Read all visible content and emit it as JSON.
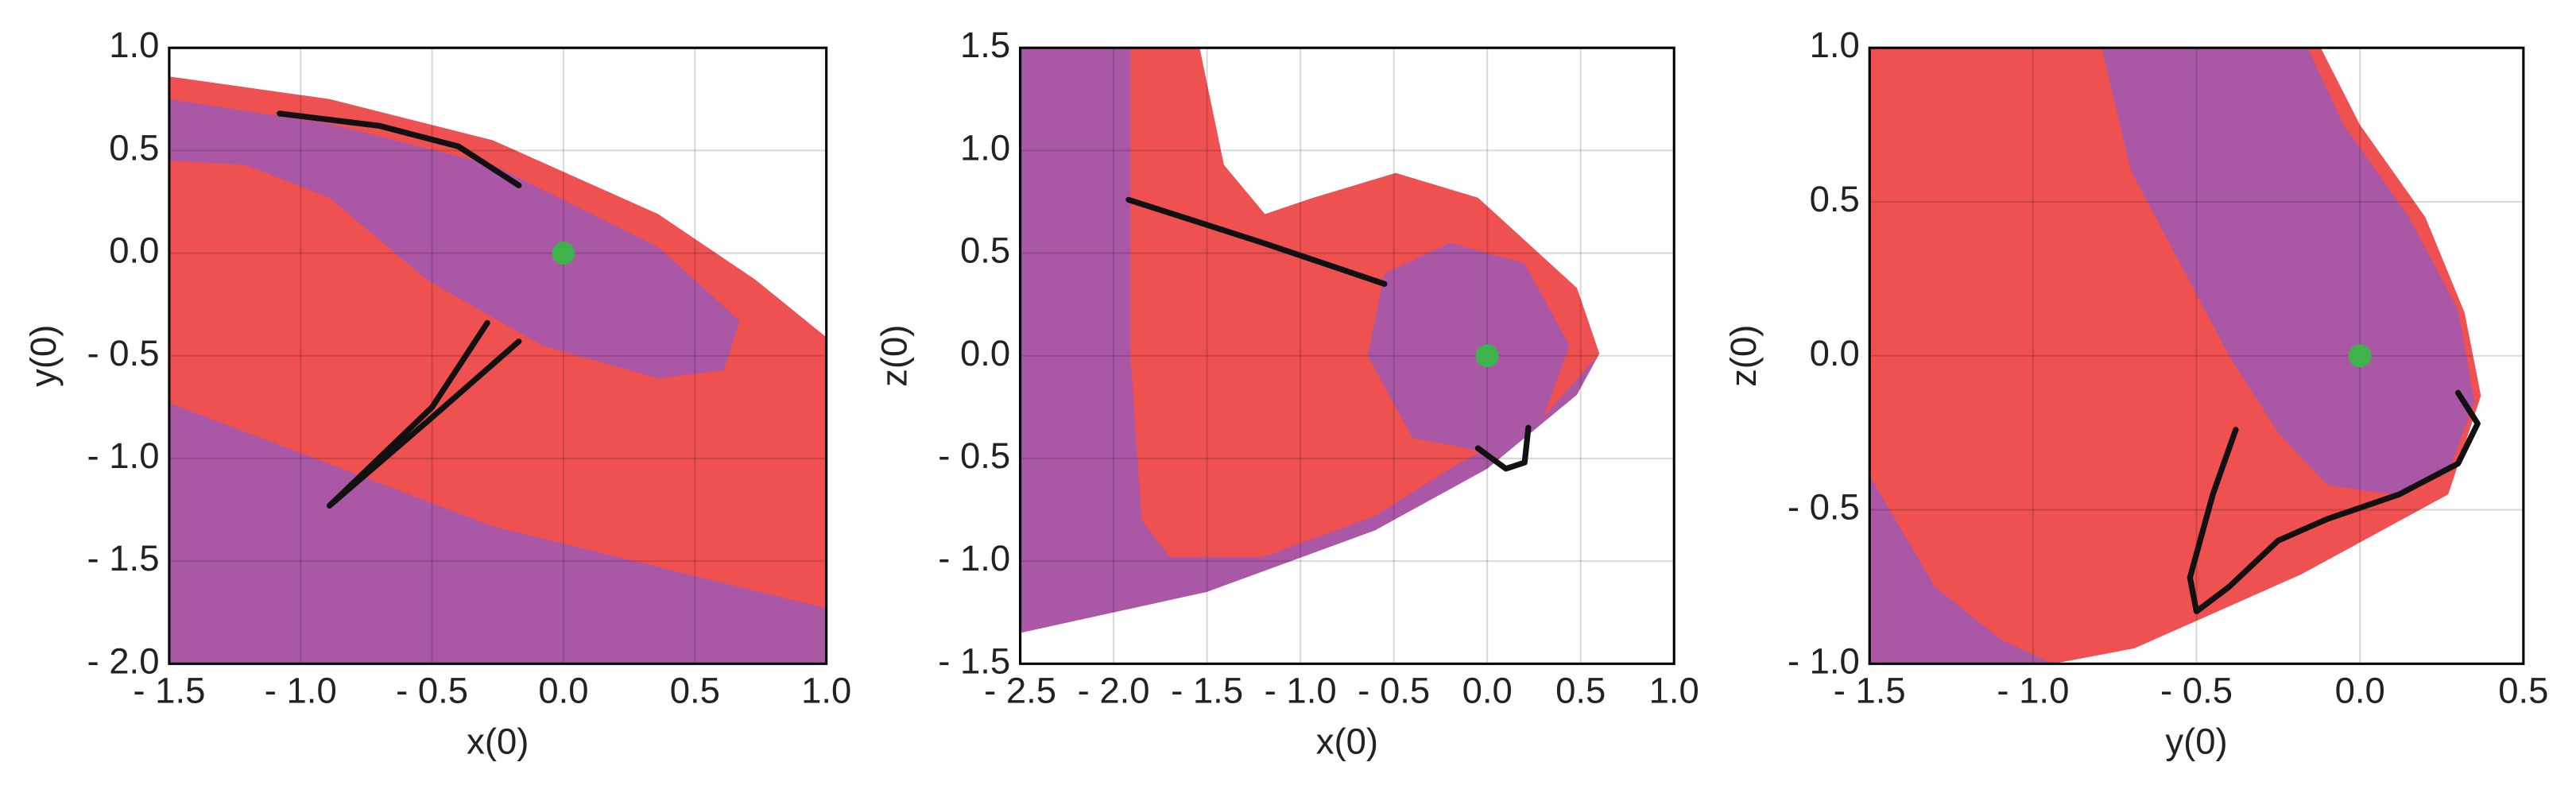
{
  "chart_data": [
    {
      "type": "scatter",
      "xlabel": "x(0)",
      "ylabel": "y(0)",
      "grid": true,
      "xlim": [
        -1.5,
        1
      ],
      "ylim": [
        -2,
        1
      ],
      "xticks": [
        {
          "value": -1.5,
          "label": "- 1.5"
        },
        {
          "value": -1,
          "label": "- 1.0"
        },
        {
          "value": -0.5,
          "label": "- 0.5"
        },
        {
          "value": 0,
          "label": "0.0"
        },
        0.5,
        {
          "value": 1,
          "label": "1.0"
        }
      ],
      "yticks": [
        {
          "value": -2,
          "label": "- 2.0"
        },
        {
          "value": -1.5,
          "label": "- 1.5"
        },
        {
          "value": -1,
          "label": "- 1.0"
        },
        {
          "value": -0.5,
          "label": "- 0.5"
        },
        {
          "value": 0,
          "label": "0.0"
        },
        0.5,
        {
          "value": 1,
          "label": "1.0"
        }
      ],
      "series": [
        {
          "kind": "area",
          "color": "#aa57a6",
          "x": [
            -1.5,
            -0.89,
            -0.27,
            0.36,
            0.73,
            1,
            1,
            -1.5
          ],
          "y": [
            0.86,
            0.75,
            0.55,
            0.19,
            -0.13,
            -0.41,
            -2,
            -2
          ]
        },
        {
          "kind": "area",
          "color": "#ef5050",
          "x": [
            -1.5,
            -0.89,
            -0.27,
            0.36,
            0.73,
            1,
            1,
            -0.27,
            -1.5
          ],
          "y": [
            0.86,
            0.75,
            0.55,
            0.19,
            -0.13,
            -0.41,
            -1.73,
            -1.33,
            -0.73
          ]
        },
        {
          "kind": "area",
          "color": "#aa57a6",
          "x": [
            -1.5,
            -0.89,
            -0.27,
            0.36,
            0.67,
            0.61,
            0.36,
            -0.08,
            -0.52,
            -0.89,
            -1.21,
            -1.5
          ],
          "y": [
            0.75,
            0.63,
            0.43,
            0.03,
            -0.33,
            -0.57,
            -0.61,
            -0.45,
            -0.13,
            0.27,
            0.43,
            0.45
          ]
        },
        {
          "kind": "line",
          "color": "#111111",
          "x": [
            -1.08,
            -0.7,
            -0.4,
            -0.17
          ],
          "y": [
            0.68,
            0.62,
            0.52,
            0.33
          ]
        },
        {
          "kind": "line",
          "color": "#111111",
          "x": [
            -0.29,
            -0.5,
            -0.89
          ],
          "y": [
            -0.34,
            -0.75,
            -1.23
          ]
        },
        {
          "kind": "line",
          "color": "#111111",
          "x": [
            -0.17,
            -0.5,
            -0.89
          ],
          "y": [
            -0.43,
            -0.8,
            -1.23
          ]
        },
        {
          "kind": "point",
          "color": "#3cb44b",
          "x": [
            0
          ],
          "y": [
            0
          ]
        }
      ]
    },
    {
      "type": "scatter",
      "xlabel": "x(0)",
      "ylabel": "z(0)",
      "grid": true,
      "xlim": [
        -2.5,
        1
      ],
      "ylim": [
        -1.5,
        1.5
      ],
      "xticks": [
        {
          "value": -2.5,
          "label": "- 2.5"
        },
        {
          "value": -2,
          "label": "- 2.0"
        },
        {
          "value": -1.5,
          "label": "- 1.5"
        },
        {
          "value": -1,
          "label": "- 1.0"
        },
        {
          "value": -0.5,
          "label": "- 0.5"
        },
        {
          "value": 0,
          "label": "0.0"
        },
        0.5,
        {
          "value": 1,
          "label": "1.0"
        }
      ],
      "yticks": [
        {
          "value": -1.5,
          "label": "- 1.5"
        },
        {
          "value": -1,
          "label": "- 1.0"
        },
        {
          "value": -0.5,
          "label": "- 0.5"
        },
        {
          "value": 0,
          "label": "0.0"
        },
        0.5,
        {
          "value": 1,
          "label": "1.0"
        },
        1.5
      ],
      "series": [
        {
          "kind": "area",
          "color": "#aa57a6",
          "x": [
            -2.5,
            -1.54,
            -1.41,
            -1.19,
            -0.93,
            -0.49,
            -0.05,
            0.48,
            0.6,
            0.48,
            0,
            -0.6,
            -1.5,
            -2.5
          ],
          "y": [
            1.5,
            1.5,
            0.93,
            0.69,
            0.77,
            0.89,
            0.77,
            0.33,
            0.01,
            -0.19,
            -0.55,
            -0.85,
            -1.15,
            -1.35
          ]
        },
        {
          "kind": "area",
          "color": "#ef5050",
          "x": [
            -1.91,
            -1.54,
            -1.41,
            -1.19,
            -0.93,
            -0.49,
            -0.05,
            0.48,
            0.6,
            0.3,
            -0.2,
            -0.6,
            -1.2,
            -1.7,
            -1.85,
            -1.91
          ],
          "y": [
            1.5,
            1.5,
            0.93,
            0.69,
            0.77,
            0.89,
            0.77,
            0.33,
            0.01,
            -0.3,
            -0.55,
            -0.78,
            -0.98,
            -0.98,
            -0.8,
            0
          ]
        },
        {
          "kind": "area",
          "color": "#aa57a6",
          "x": [
            -0.64,
            -0.55,
            -0.2,
            0.2,
            0.44,
            0.3,
            0,
            -0.4
          ],
          "y": [
            0,
            0.4,
            0.55,
            0.45,
            0.05,
            -0.3,
            -0.47,
            -0.4
          ]
        },
        {
          "kind": "line",
          "color": "#111111",
          "x": [
            -1.92,
            -1.2,
            -0.55
          ],
          "y": [
            0.76,
            0.55,
            0.35
          ]
        },
        {
          "kind": "line",
          "color": "#111111",
          "x": [
            -0.05,
            0.1,
            0.2,
            0.22
          ],
          "y": [
            -0.45,
            -0.55,
            -0.52,
            -0.35
          ]
        },
        {
          "kind": "point",
          "color": "#3cb44b",
          "x": [
            0
          ],
          "y": [
            0
          ]
        }
      ]
    },
    {
      "type": "scatter",
      "xlabel": "y(0)",
      "ylabel": "z(0)",
      "grid": true,
      "xlim": [
        -1.5,
        0.5
      ],
      "ylim": [
        -1,
        1
      ],
      "xticks": [
        {
          "value": -1.5,
          "label": "- 1.5"
        },
        {
          "value": -1,
          "label": "- 1.0"
        },
        {
          "value": -0.5,
          "label": "- 0.5"
        },
        {
          "value": 0,
          "label": "0.0"
        },
        0.5
      ],
      "yticks": [
        {
          "value": -1,
          "label": "- 1.0"
        },
        {
          "value": -0.5,
          "label": "- 0.5"
        },
        {
          "value": 0,
          "label": "0.0"
        },
        0.5,
        {
          "value": 1,
          "label": "1.0"
        }
      ],
      "series": [
        {
          "kind": "area",
          "color": "#ef5050",
          "x": [
            -1.5,
            -0.12,
            0,
            0.2,
            0.32,
            0.37,
            0.27,
            -0.18,
            -0.69,
            -0.94,
            -1.5
          ],
          "y": [
            1,
            1,
            0.75,
            0.45,
            0.14,
            -0.13,
            -0.45,
            -0.71,
            -0.95,
            -1,
            -1
          ]
        },
        {
          "kind": "area",
          "color": "#aa57a6",
          "x": [
            -0.79,
            -0.16,
            -0.05,
            0.15,
            0.3,
            0.35,
            0.27,
            0.1,
            -0.1,
            -0.25,
            -0.4,
            -0.55,
            -0.7
          ],
          "y": [
            1,
            1,
            0.75,
            0.45,
            0.15,
            -0.15,
            -0.38,
            -0.45,
            -0.42,
            -0.25,
            0,
            0.3,
            0.6
          ]
        },
        {
          "kind": "area",
          "color": "#aa57a6",
          "x": [
            -1.5,
            -1.3,
            -1.1,
            -0.94,
            -1.5
          ],
          "y": [
            -0.39,
            -0.75,
            -0.92,
            -1,
            -1
          ]
        },
        {
          "kind": "line",
          "color": "#111111",
          "x": [
            -0.38,
            -0.45,
            -0.52,
            -0.5,
            -0.4,
            -0.25,
            -0.1,
            0.12,
            0.3,
            0.36,
            0.3
          ],
          "y": [
            -0.24,
            -0.45,
            -0.72,
            -0.83,
            -0.75,
            -0.6,
            -0.53,
            -0.45,
            -0.35,
            -0.22,
            -0.12
          ]
        },
        {
          "kind": "point",
          "color": "#3cb44b",
          "x": [
            0
          ],
          "y": [
            0
          ]
        }
      ]
    }
  ]
}
